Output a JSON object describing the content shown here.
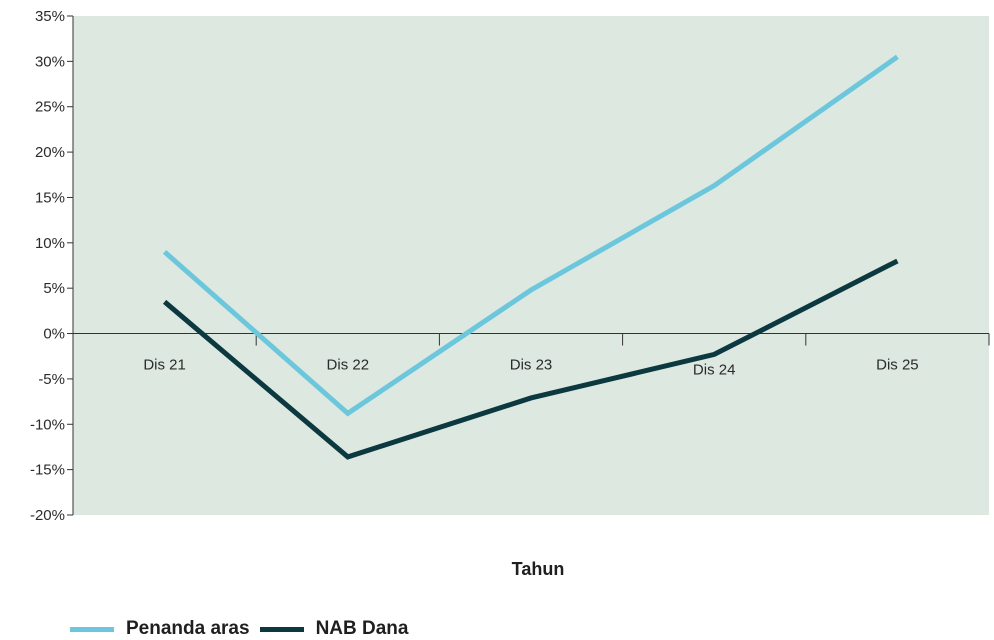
{
  "chart_data": {
    "type": "line",
    "categories": [
      "Dis 21",
      "Dis 22",
      "Dis 23",
      "Dis 24",
      "Dis 25"
    ],
    "series": [
      {
        "name": "Penanda aras",
        "values": [
          9.0,
          -8.8,
          4.8,
          16.3,
          30.5
        ],
        "color": "#6cc7dc"
      },
      {
        "name": "NAB Dana",
        "values": [
          3.5,
          -13.6,
          -7.1,
          -2.3,
          8.0
        ],
        "color": "#0c3840"
      }
    ],
    "xlabel": "Tahun",
    "ylabel": "",
    "ylim": [
      -20,
      35
    ],
    "yticks": [
      "35%",
      "30%",
      "25%",
      "20%",
      "15%",
      "10%",
      "5%",
      "0%",
      "-5%",
      "-10%",
      "-15%",
      "-20%"
    ],
    "grid": false,
    "legend": "bottom-left",
    "plot_background": "#dde8e1"
  }
}
